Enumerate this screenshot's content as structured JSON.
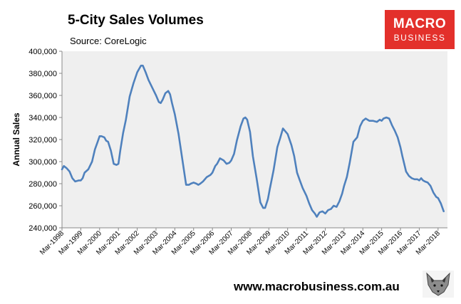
{
  "header": {
    "title": "5-City Sales Volumes",
    "source": "Source: CoreLogic"
  },
  "logo": {
    "line1": "MACRO",
    "line2": "BUSINESS"
  },
  "footer": {
    "website": "www.macrobusiness.com.au"
  },
  "colors": {
    "line": "#4f81bd",
    "plot_background": "#efefef",
    "brand": "#e3302b"
  },
  "chart_data": {
    "type": "line",
    "title": "5-City Sales Volumes",
    "subtitle": "Source: CoreLogic",
    "xlabel": "",
    "ylabel": "Annual Sales",
    "ylim": [
      240000,
      400000
    ],
    "yticks": [
      240000,
      260000,
      280000,
      300000,
      320000,
      340000,
      360000,
      380000,
      400000
    ],
    "ytick_labels": [
      "240,000",
      "260,000",
      "280,000",
      "300,000",
      "320,000",
      "340,000",
      "360,000",
      "380,000",
      "400,000"
    ],
    "xlim": [
      1998.0,
      2018.5
    ],
    "xticks": [
      1998,
      1999,
      2000,
      2001,
      2002,
      2003,
      2004,
      2005,
      2006,
      2007,
      2008,
      2009,
      2010,
      2011,
      2012,
      2013,
      2014,
      2015,
      2016,
      2017,
      2018
    ],
    "xtick_labels": [
      "Mar-1998",
      "Mar-1999",
      "Mar-2000",
      "Mar-2001",
      "Mar-2002",
      "Mar-2003",
      "Mar-2004",
      "Mar-2005",
      "Mar-2006",
      "Mar-2007",
      "Mar-2008",
      "Mar-2009",
      "Mar-2010",
      "Mar-2011",
      "Mar-2012",
      "Mar-2013",
      "Mar-2014",
      "Mar-2015",
      "Mar-2016",
      "Mar-2017",
      "Mar-2018"
    ],
    "grid": false,
    "legend": "none",
    "series": [
      {
        "name": "Annual Sales",
        "x": [
          1998.0,
          1998.1,
          1998.25,
          1998.4,
          1998.55,
          1998.7,
          1998.9,
          1999.0,
          1999.1,
          1999.2,
          1999.4,
          1999.6,
          1999.75,
          1999.9,
          2000.0,
          2000.1,
          2000.25,
          2000.35,
          2000.45,
          2000.6,
          2000.75,
          2000.9,
          2001.0,
          2001.1,
          2001.25,
          2001.4,
          2001.6,
          2001.8,
          2002.0,
          2002.2,
          2002.3,
          2002.45,
          2002.6,
          2002.8,
          2003.0,
          2003.15,
          2003.25,
          2003.35,
          2003.5,
          2003.65,
          2003.75,
          2003.85,
          2004.0,
          2004.2,
          2004.4,
          2004.6,
          2004.75,
          2004.85,
          2005.0,
          2005.15,
          2005.25,
          2005.35,
          2005.5,
          2005.7,
          2005.9,
          2006.0,
          2006.15,
          2006.25,
          2006.4,
          2006.6,
          2006.75,
          2006.9,
          2007.0,
          2007.15,
          2007.3,
          2007.5,
          2007.65,
          2007.75,
          2007.85,
          2008.0,
          2008.15,
          2008.35,
          2008.55,
          2008.7,
          2008.8,
          2008.95,
          2009.05,
          2009.25,
          2009.45,
          2009.6,
          2009.75,
          2009.85,
          2010.0,
          2010.2,
          2010.35,
          2010.5,
          2010.65,
          2010.8,
          2011.0,
          2011.15,
          2011.3,
          2011.45,
          2011.55,
          2011.7,
          2011.85,
          2012.0,
          2012.15,
          2012.3,
          2012.45,
          2012.6,
          2012.75,
          2012.9,
          2013.0,
          2013.15,
          2013.3,
          2013.5,
          2013.7,
          2013.85,
          2014.0,
          2014.15,
          2014.35,
          2014.55,
          2014.75,
          2014.9,
          2015.0,
          2015.1,
          2015.25,
          2015.4,
          2015.55,
          2015.7,
          2015.85,
          2016.0,
          2016.1,
          2016.2,
          2016.3,
          2016.45,
          2016.6,
          2016.75,
          2016.9,
          2017.0,
          2017.1,
          2017.2,
          2017.3,
          2017.45,
          2017.6,
          2017.75,
          2017.9,
          2018.0,
          2018.15,
          2018.3
        ],
        "y": [
          293000,
          296000,
          294000,
          291000,
          285000,
          282000,
          283000,
          283000,
          285000,
          290000,
          293000,
          300000,
          311000,
          318000,
          323000,
          323000,
          322000,
          319000,
          318000,
          310000,
          298000,
          297000,
          298000,
          310000,
          326000,
          338000,
          359000,
          371000,
          381000,
          387000,
          387000,
          381000,
          374000,
          367000,
          360000,
          354000,
          353000,
          356000,
          362000,
          364000,
          361000,
          353000,
          343000,
          325000,
          302000,
          279000,
          279000,
          280000,
          281000,
          280000,
          279000,
          280000,
          282000,
          286000,
          288000,
          290000,
          296000,
          298000,
          303000,
          301000,
          298000,
          299000,
          301000,
          307000,
          319000,
          332000,
          339000,
          340000,
          338000,
          327000,
          305000,
          285000,
          263000,
          258000,
          258000,
          266000,
          275000,
          292000,
          313000,
          321000,
          330000,
          328000,
          325000,
          315000,
          305000,
          290000,
          283000,
          276000,
          269000,
          262000,
          256000,
          253000,
          250000,
          254000,
          255000,
          253000,
          256000,
          257000,
          260000,
          259000,
          264000,
          271000,
          278000,
          286000,
          299000,
          318000,
          322000,
          332000,
          337000,
          339000,
          337000,
          337000,
          336000,
          338000,
          337000,
          339000,
          340000,
          339000,
          333000,
          328000,
          322000,
          313000,
          305000,
          298000,
          291000,
          287000,
          285000,
          284000,
          284000,
          283000,
          285000,
          283000,
          282000,
          281000,
          278000,
          272000,
          268000,
          267000,
          262000,
          255000
        ]
      }
    ]
  }
}
